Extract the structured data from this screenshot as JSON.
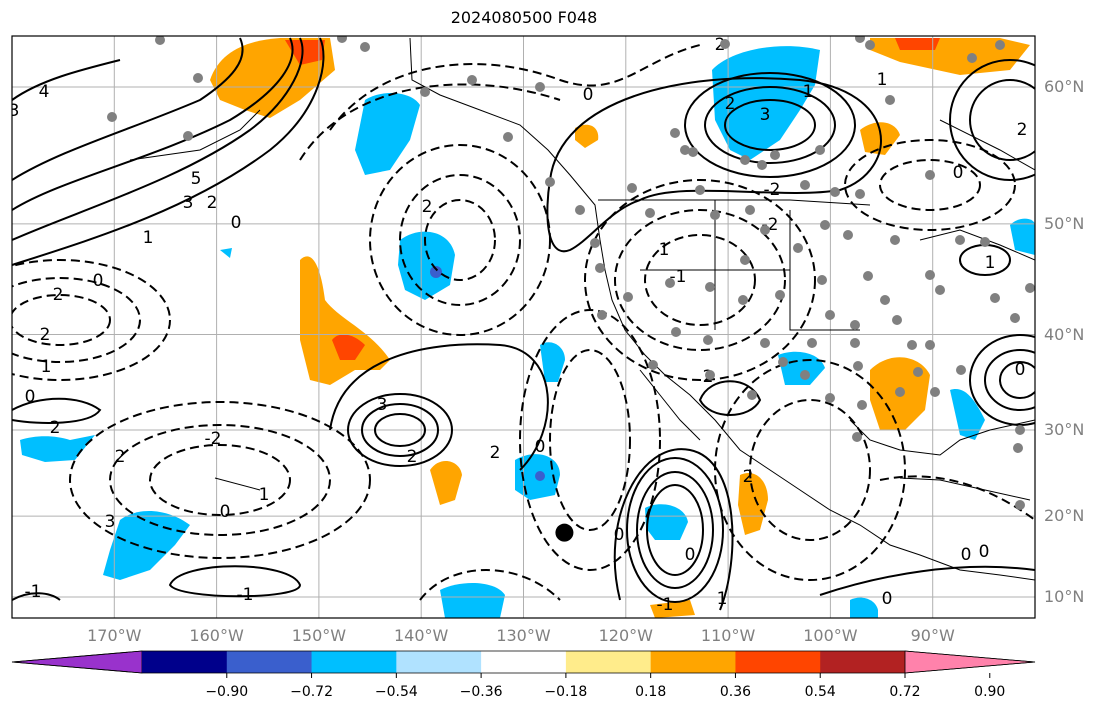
{
  "title": "2024080500 F048",
  "lat_labels": [
    {
      "text": "60°N",
      "deg": 60
    },
    {
      "text": "50°N",
      "deg": 50
    },
    {
      "text": "40°N",
      "deg": 40
    },
    {
      "text": "30°N",
      "deg": 30
    },
    {
      "text": "20°N",
      "deg": 20
    },
    {
      "text": "10°N",
      "deg": 10
    }
  ],
  "lon_labels": [
    {
      "text": "170°W",
      "deg": -170
    },
    {
      "text": "160°W",
      "deg": -160
    },
    {
      "text": "150°W",
      "deg": -150
    },
    {
      "text": "140°W",
      "deg": -140
    },
    {
      "text": "130°W",
      "deg": -130
    },
    {
      "text": "120°W",
      "deg": -120
    },
    {
      "text": "110°W",
      "deg": -110
    },
    {
      "text": "100°W",
      "deg": -100
    },
    {
      "text": "90°W",
      "deg": -90
    }
  ],
  "colorbar": {
    "colors": [
      "#9932cc",
      "#00008b",
      "#3a5fcd",
      "#00bfff",
      "#b0e2ff",
      "#ffffff",
      "#ffec8b",
      "#ffa500",
      "#ff4500",
      "#b22222",
      "#ff82ab"
    ],
    "tick_labels": [
      "−0.90",
      "−0.72",
      "−0.54",
      "−0.36",
      "−0.18",
      "0.18",
      "0.36",
      "0.54",
      "0.72",
      "0.90"
    ]
  },
  "contour_labels": [
    "3",
    "4",
    "5",
    "3",
    "2",
    "1",
    "0",
    "2",
    "0",
    "-2",
    "2",
    "1",
    "0",
    "2",
    "2",
    "-2",
    "1",
    "0",
    "3",
    "-1",
    "3",
    "2",
    "0",
    "2",
    "2",
    "0",
    "-1",
    "0",
    "2",
    "3",
    "1",
    "-2",
    "-2",
    "-1",
    "1",
    "2",
    "1",
    "0",
    "0",
    "0",
    "-1",
    "1",
    "0",
    "1",
    "0",
    "2",
    "0",
    "2"
  ],
  "observation_marker": {
    "lat": 18,
    "lon": -126
  }
}
